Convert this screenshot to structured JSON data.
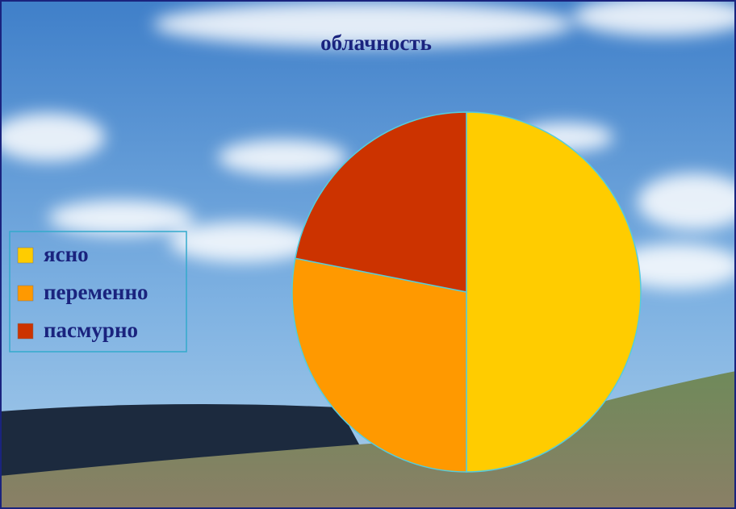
{
  "chart_data": {
    "type": "pie",
    "title": "облачность",
    "categories": [
      "ясно",
      "переменно",
      "пасмурно"
    ],
    "values": [
      50,
      28,
      22
    ],
    "colors": [
      "#ffcc00",
      "#ff9900",
      "#cc3300"
    ],
    "legend": "left"
  }
}
